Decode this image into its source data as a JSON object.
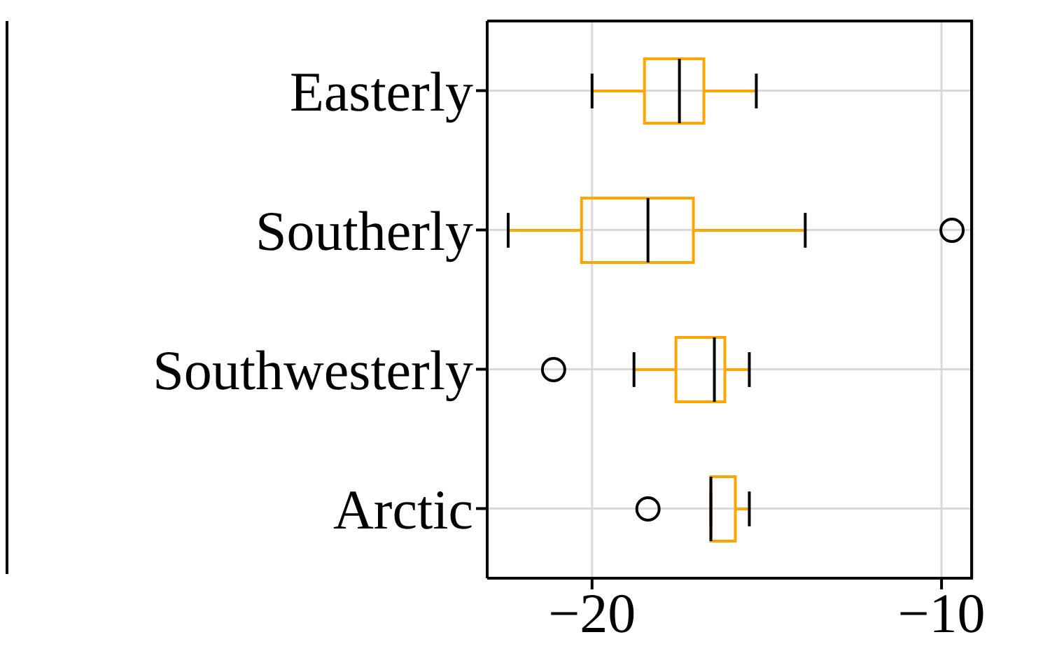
{
  "chart_data": {
    "type": "box",
    "orientation": "horizontal",
    "categories": [
      "Easterly",
      "Southerly",
      "Southwesterly",
      "Arctic"
    ],
    "series": [
      {
        "color": "#ffa500",
        "boxes": [
          {
            "low": -20.0,
            "q1": -18.5,
            "median": -17.5,
            "q3": -16.8,
            "high": -15.3
          },
          {
            "low": -22.4,
            "q1": -20.3,
            "median": -18.4,
            "q3": -17.1,
            "high": -13.9,
            "outliers": [
              -9.7
            ]
          },
          {
            "low": -18.8,
            "q1": -17.6,
            "median": -16.5,
            "q3": -16.2,
            "high": -15.5,
            "outliers": [
              -21.1
            ]
          },
          {
            "low": -16.6,
            "q1": -16.6,
            "median": -16.6,
            "q3": -15.9,
            "high": -15.5,
            "outliers": [
              -18.4
            ]
          }
        ]
      }
    ],
    "xlim": [
      -23.0,
      -9.1
    ],
    "xticks": [
      {
        "value": -20,
        "label": "−20"
      },
      {
        "value": -10,
        "label": "−10"
      }
    ],
    "grid": true
  }
}
